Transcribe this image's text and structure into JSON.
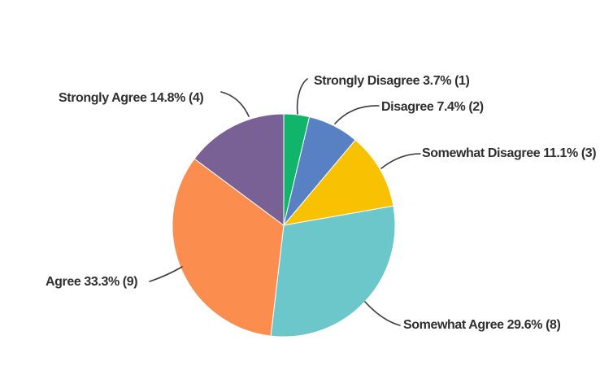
{
  "chart_data": {
    "type": "pie",
    "title": "",
    "start_angle_deg": 0,
    "direction": "clockwise",
    "legend_position": "none",
    "labels_style": "external-callout",
    "background_color": "#ffffff",
    "leader_line_color": "#3b3b3b",
    "label_text_color": "#2f2f2f",
    "slices": [
      {
        "name": "Strongly Disagree",
        "percent": 3.7,
        "count": 1,
        "label": "Strongly Disagree 3.7% (1)",
        "color": "#10b46a"
      },
      {
        "name": "Disagree",
        "percent": 7.4,
        "count": 2,
        "label": "Disagree 7.4% (2)",
        "color": "#5881c3"
      },
      {
        "name": "Somewhat Disagree",
        "percent": 11.1,
        "count": 3,
        "label": "Somewhat Disagree 11.1% (3)",
        "color": "#f8c203"
      },
      {
        "name": "Somewhat Agree",
        "percent": 29.6,
        "count": 8,
        "label": "Somewhat Agree 29.6% (8)",
        "color": "#6bc7c9"
      },
      {
        "name": "Agree",
        "percent": 33.3,
        "count": 9,
        "label": "Agree 33.3% (9)",
        "color": "#fb8d4f"
      },
      {
        "name": "Strongly Agree",
        "percent": 14.8,
        "count": 4,
        "label": "Strongly Agree 14.8% (4)",
        "color": "#7a6195"
      }
    ]
  }
}
